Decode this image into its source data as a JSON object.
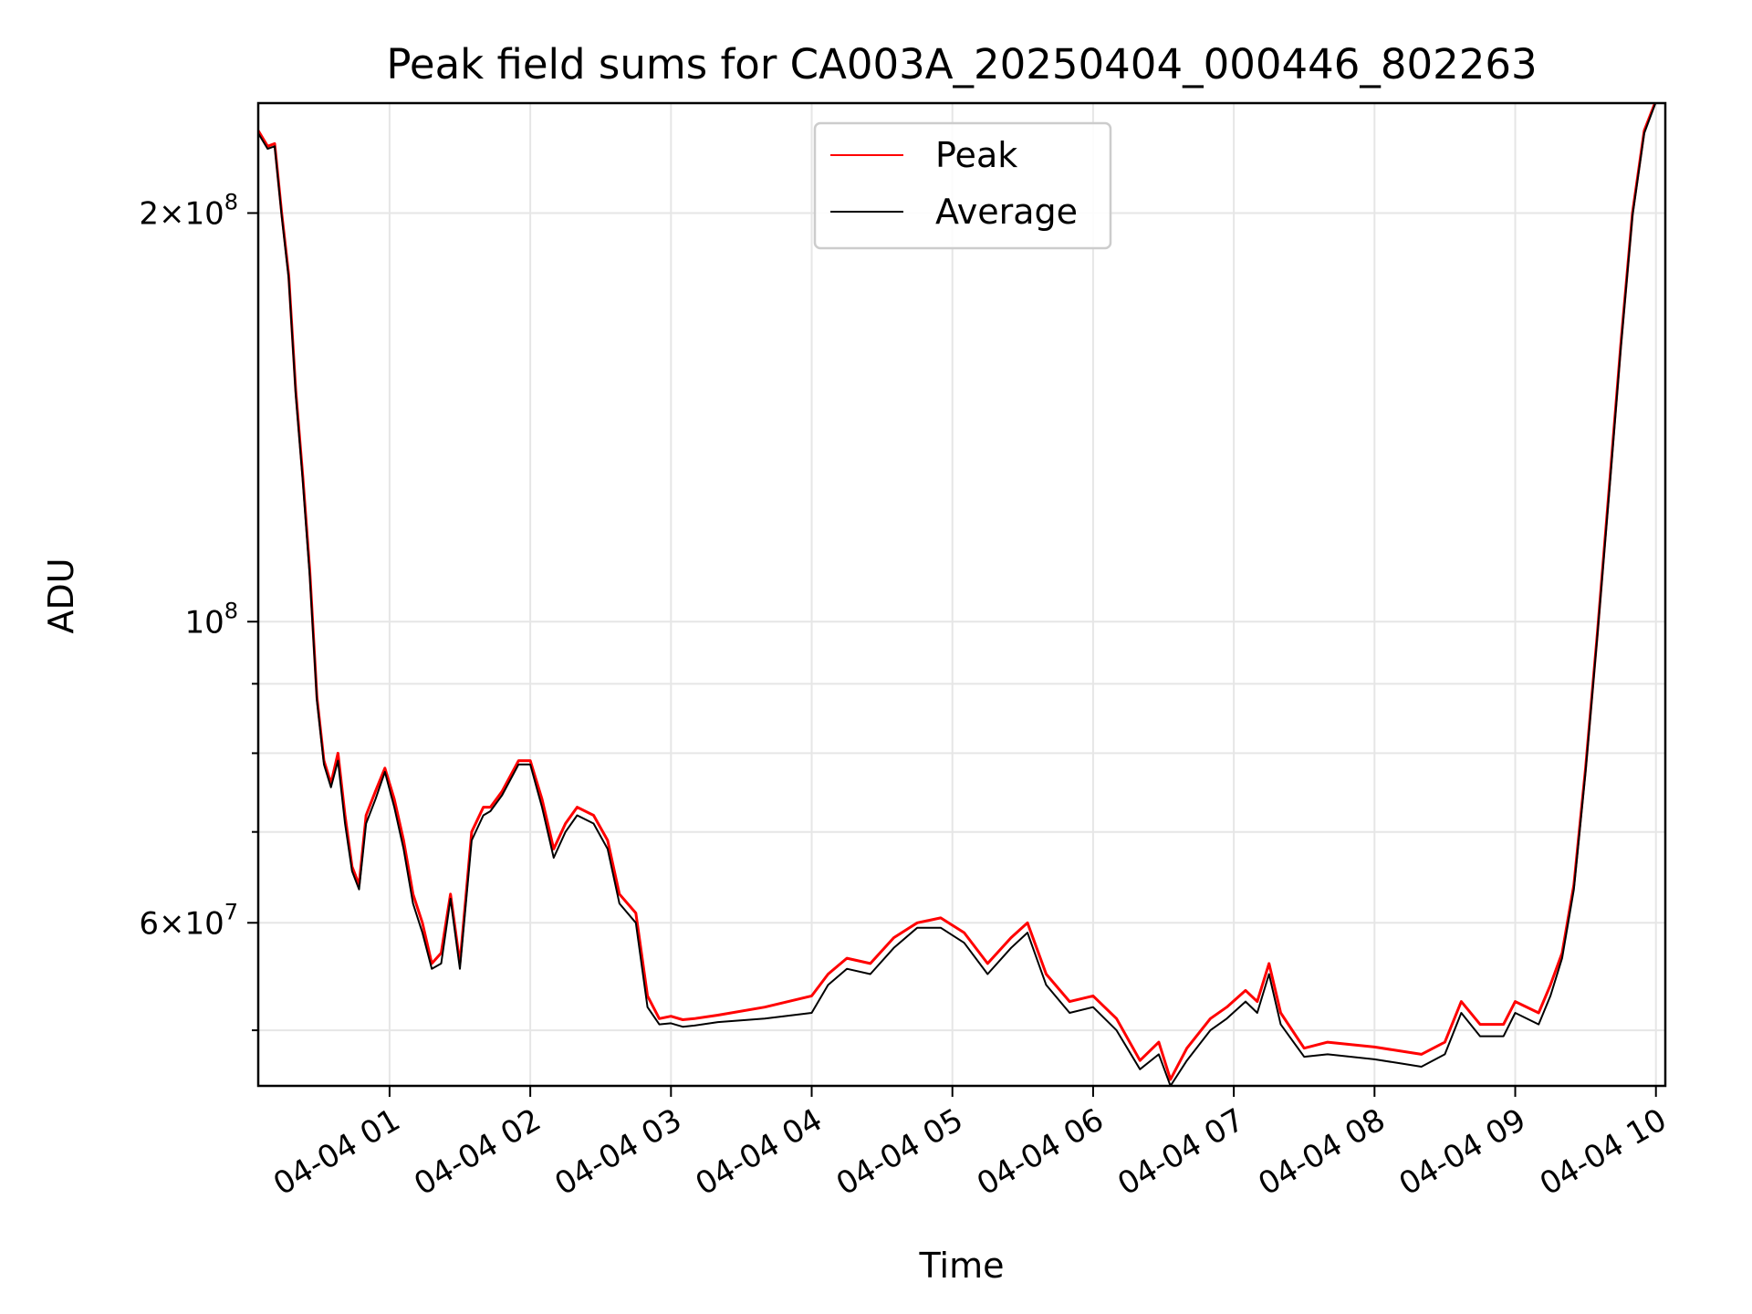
{
  "chart_data": {
    "type": "line",
    "title": "Peak field sums for CA003A_20250404_000446_802263",
    "xlabel": "Time",
    "ylabel": "ADU",
    "yscale": "log",
    "xlim": [
      "2025-04-04T00:04:00",
      "2025-04-04T10:04:00"
    ],
    "ylim": [
      45500000,
      241000000
    ],
    "grid": true,
    "legend_position": "upper-center",
    "x_ticks": [
      {
        "value": "2025-04-04T01:00:00",
        "label": "04-04 01"
      },
      {
        "value": "2025-04-04T02:00:00",
        "label": "04-04 02"
      },
      {
        "value": "2025-04-04T03:00:00",
        "label": "04-04 03"
      },
      {
        "value": "2025-04-04T04:00:00",
        "label": "04-04 04"
      },
      {
        "value": "2025-04-04T05:00:00",
        "label": "04-04 05"
      },
      {
        "value": "2025-04-04T06:00:00",
        "label": "04-04 06"
      },
      {
        "value": "2025-04-04T07:00:00",
        "label": "04-04 07"
      },
      {
        "value": "2025-04-04T08:00:00",
        "label": "04-04 08"
      },
      {
        "value": "2025-04-04T09:00:00",
        "label": "04-04 09"
      },
      {
        "value": "2025-04-04T10:00:00",
        "label": "04-04 10"
      }
    ],
    "y_major_ticks": [
      {
        "value": 200000000,
        "mantissa": "2",
        "exponent": "8"
      },
      {
        "value": 100000000,
        "mantissa": "",
        "exponent": "8"
      },
      {
        "value": 60000000,
        "mantissa": "6",
        "exponent": "7"
      }
    ],
    "y_minor_ticks": [
      50000000,
      70000000,
      80000000,
      90000000
    ],
    "series": [
      {
        "name": "Peak",
        "color": "#ff0000",
        "x": [
          "2025-04-04T00:04:00",
          "2025-04-04T00:08:00",
          "2025-04-04T00:11:00",
          "2025-04-04T00:14:00",
          "2025-04-04T00:17:00",
          "2025-04-04T00:20:00",
          "2025-04-04T00:23:00",
          "2025-04-04T00:26:00",
          "2025-04-04T00:29:00",
          "2025-04-04T00:32:00",
          "2025-04-04T00:35:00",
          "2025-04-04T00:38:00",
          "2025-04-04T00:41:00",
          "2025-04-04T00:44:00",
          "2025-04-04T00:47:00",
          "2025-04-04T00:50:00",
          "2025-04-04T00:54:00",
          "2025-04-04T00:58:00",
          "2025-04-04T01:02:00",
          "2025-04-04T01:06:00",
          "2025-04-04T01:10:00",
          "2025-04-04T01:14:00",
          "2025-04-04T01:18:00",
          "2025-04-04T01:22:00",
          "2025-04-04T01:26:00",
          "2025-04-04T01:30:00",
          "2025-04-04T01:35:00",
          "2025-04-04T01:40:00",
          "2025-04-04T01:43:00",
          "2025-04-04T01:48:00",
          "2025-04-04T01:55:00",
          "2025-04-04T02:00:00",
          "2025-04-04T02:05:00",
          "2025-04-04T02:10:00",
          "2025-04-04T02:15:00",
          "2025-04-04T02:20:00",
          "2025-04-04T02:27:00",
          "2025-04-04T02:33:00",
          "2025-04-04T02:38:00",
          "2025-04-04T02:45:00",
          "2025-04-04T02:50:00",
          "2025-04-04T02:55:00",
          "2025-04-04T03:00:00",
          "2025-04-04T03:05:00",
          "2025-04-04T03:10:00",
          "2025-04-04T03:20:00",
          "2025-04-04T03:40:00",
          "2025-04-04T04:00:00",
          "2025-04-04T04:07:00",
          "2025-04-04T04:15:00",
          "2025-04-04T04:25:00",
          "2025-04-04T04:35:00",
          "2025-04-04T04:45:00",
          "2025-04-04T04:55:00",
          "2025-04-04T05:05:00",
          "2025-04-04T05:15:00",
          "2025-04-04T05:25:00",
          "2025-04-04T05:32:00",
          "2025-04-04T05:40:00",
          "2025-04-04T05:50:00",
          "2025-04-04T06:00:00",
          "2025-04-04T06:10:00",
          "2025-04-04T06:20:00",
          "2025-04-04T06:28:00",
          "2025-04-04T06:33:00",
          "2025-04-04T06:40:00",
          "2025-04-04T06:50:00",
          "2025-04-04T06:57:00",
          "2025-04-04T07:05:00",
          "2025-04-04T07:10:00",
          "2025-04-04T07:15:00",
          "2025-04-04T07:20:00",
          "2025-04-04T07:30:00",
          "2025-04-04T07:40:00",
          "2025-04-04T07:50:00",
          "2025-04-04T08:00:00",
          "2025-04-04T08:10:00",
          "2025-04-04T08:20:00",
          "2025-04-04T08:30:00",
          "2025-04-04T08:37:00",
          "2025-04-04T08:45:00",
          "2025-04-04T08:55:00",
          "2025-04-04T09:00:00",
          "2025-04-04T09:10:00",
          "2025-04-04T09:15:00",
          "2025-04-04T09:20:00",
          "2025-04-04T09:25:00",
          "2025-04-04T09:30:00",
          "2025-04-04T09:35:00",
          "2025-04-04T09:40:00",
          "2025-04-04T09:45:00",
          "2025-04-04T09:50:00",
          "2025-04-04T09:55:00",
          "2025-04-04T10:00:00",
          "2025-04-04T10:04:00"
        ],
        "y": [
          230000000,
          224000000,
          225000000,
          200000000,
          180000000,
          148000000,
          128000000,
          109000000,
          88000000,
          79000000,
          76000000,
          80000000,
          72000000,
          66000000,
          64000000,
          72000000,
          75000000,
          78000000,
          74000000,
          69000000,
          63000000,
          60000000,
          56000000,
          57000000,
          63000000,
          56000000,
          70000000,
          73000000,
          73000000,
          75000000,
          79000000,
          79000000,
          74000000,
          68000000,
          71000000,
          73000000,
          72000000,
          69000000,
          63000000,
          61000000,
          53000000,
          51000000,
          51200000,
          50900000,
          51000000,
          51300000,
          52000000,
          53000000,
          55000000,
          56500000,
          56000000,
          58500000,
          60000000,
          60500000,
          59000000,
          56000000,
          58500000,
          60000000,
          55000000,
          52500000,
          53000000,
          51000000,
          47500000,
          49000000,
          46000000,
          48500000,
          51000000,
          52000000,
          53500000,
          52500000,
          56000000,
          51500000,
          48500000,
          49000000,
          48800000,
          48600000,
          48300000,
          48000000,
          49000000,
          52500000,
          50500000,
          50500000,
          52500000,
          51500000,
          54000000,
          57000000,
          64000000,
          78000000,
          98000000,
          125000000,
          160000000,
          200000000,
          230000000,
          242000000,
          242000000
        ]
      },
      {
        "name": "Average",
        "color": "#000000",
        "x": [
          "2025-04-04T00:04:00",
          "2025-04-04T00:08:00",
          "2025-04-04T00:11:00",
          "2025-04-04T00:14:00",
          "2025-04-04T00:17:00",
          "2025-04-04T00:20:00",
          "2025-04-04T00:23:00",
          "2025-04-04T00:26:00",
          "2025-04-04T00:29:00",
          "2025-04-04T00:32:00",
          "2025-04-04T00:35:00",
          "2025-04-04T00:38:00",
          "2025-04-04T00:41:00",
          "2025-04-04T00:44:00",
          "2025-04-04T00:47:00",
          "2025-04-04T00:50:00",
          "2025-04-04T00:54:00",
          "2025-04-04T00:58:00",
          "2025-04-04T01:02:00",
          "2025-04-04T01:06:00",
          "2025-04-04T01:10:00",
          "2025-04-04T01:14:00",
          "2025-04-04T01:18:00",
          "2025-04-04T01:22:00",
          "2025-04-04T01:26:00",
          "2025-04-04T01:30:00",
          "2025-04-04T01:35:00",
          "2025-04-04T01:40:00",
          "2025-04-04T01:43:00",
          "2025-04-04T01:48:00",
          "2025-04-04T01:55:00",
          "2025-04-04T02:00:00",
          "2025-04-04T02:05:00",
          "2025-04-04T02:10:00",
          "2025-04-04T02:15:00",
          "2025-04-04T02:20:00",
          "2025-04-04T02:27:00",
          "2025-04-04T02:33:00",
          "2025-04-04T02:38:00",
          "2025-04-04T02:45:00",
          "2025-04-04T02:50:00",
          "2025-04-04T02:55:00",
          "2025-04-04T03:00:00",
          "2025-04-04T03:05:00",
          "2025-04-04T03:10:00",
          "2025-04-04T03:20:00",
          "2025-04-04T03:40:00",
          "2025-04-04T04:00:00",
          "2025-04-04T04:07:00",
          "2025-04-04T04:15:00",
          "2025-04-04T04:25:00",
          "2025-04-04T04:35:00",
          "2025-04-04T04:45:00",
          "2025-04-04T04:55:00",
          "2025-04-04T05:05:00",
          "2025-04-04T05:15:00",
          "2025-04-04T05:25:00",
          "2025-04-04T05:32:00",
          "2025-04-04T05:40:00",
          "2025-04-04T05:50:00",
          "2025-04-04T06:00:00",
          "2025-04-04T06:10:00",
          "2025-04-04T06:20:00",
          "2025-04-04T06:28:00",
          "2025-04-04T06:33:00",
          "2025-04-04T06:40:00",
          "2025-04-04T06:50:00",
          "2025-04-04T06:57:00",
          "2025-04-04T07:05:00",
          "2025-04-04T07:10:00",
          "2025-04-04T07:15:00",
          "2025-04-04T07:20:00",
          "2025-04-04T07:30:00",
          "2025-04-04T07:40:00",
          "2025-04-04T07:50:00",
          "2025-04-04T08:00:00",
          "2025-04-04T08:10:00",
          "2025-04-04T08:20:00",
          "2025-04-04T08:30:00",
          "2025-04-04T08:37:00",
          "2025-04-04T08:45:00",
          "2025-04-04T08:55:00",
          "2025-04-04T09:00:00",
          "2025-04-04T09:10:00",
          "2025-04-04T09:15:00",
          "2025-04-04T09:20:00",
          "2025-04-04T09:25:00",
          "2025-04-04T09:30:00",
          "2025-04-04T09:35:00",
          "2025-04-04T09:40:00",
          "2025-04-04T09:45:00",
          "2025-04-04T09:50:00",
          "2025-04-04T09:55:00",
          "2025-04-04T10:00:00",
          "2025-04-04T10:04:00"
        ],
        "y": [
          229000000,
          223000000,
          224000000,
          199000000,
          179000000,
          147000000,
          127000000,
          108000000,
          87500000,
          78500000,
          75500000,
          79000000,
          71000000,
          65500000,
          63500000,
          71000000,
          74000000,
          77500000,
          73000000,
          68000000,
          62000000,
          59000000,
          55500000,
          56000000,
          62500000,
          55500000,
          69000000,
          72000000,
          72500000,
          74500000,
          78500000,
          78500000,
          73000000,
          67000000,
          70000000,
          72000000,
          71000000,
          68000000,
          62000000,
          60000000,
          52000000,
          50500000,
          50600000,
          50300000,
          50400000,
          50700000,
          51000000,
          51500000,
          54000000,
          55500000,
          55000000,
          57500000,
          59500000,
          59500000,
          58000000,
          55000000,
          57500000,
          59000000,
          54000000,
          51500000,
          52000000,
          50000000,
          46800000,
          48000000,
          45500000,
          47500000,
          50000000,
          51000000,
          52500000,
          51500000,
          55000000,
          50500000,
          47800000,
          48000000,
          47800000,
          47600000,
          47300000,
          47000000,
          48000000,
          51500000,
          49500000,
          49500000,
          51500000,
          50500000,
          53000000,
          56500000,
          63500000,
          77500000,
          97500000,
          124000000,
          159000000,
          199000000,
          229000000,
          241500000,
          241500000
        ]
      }
    ]
  }
}
